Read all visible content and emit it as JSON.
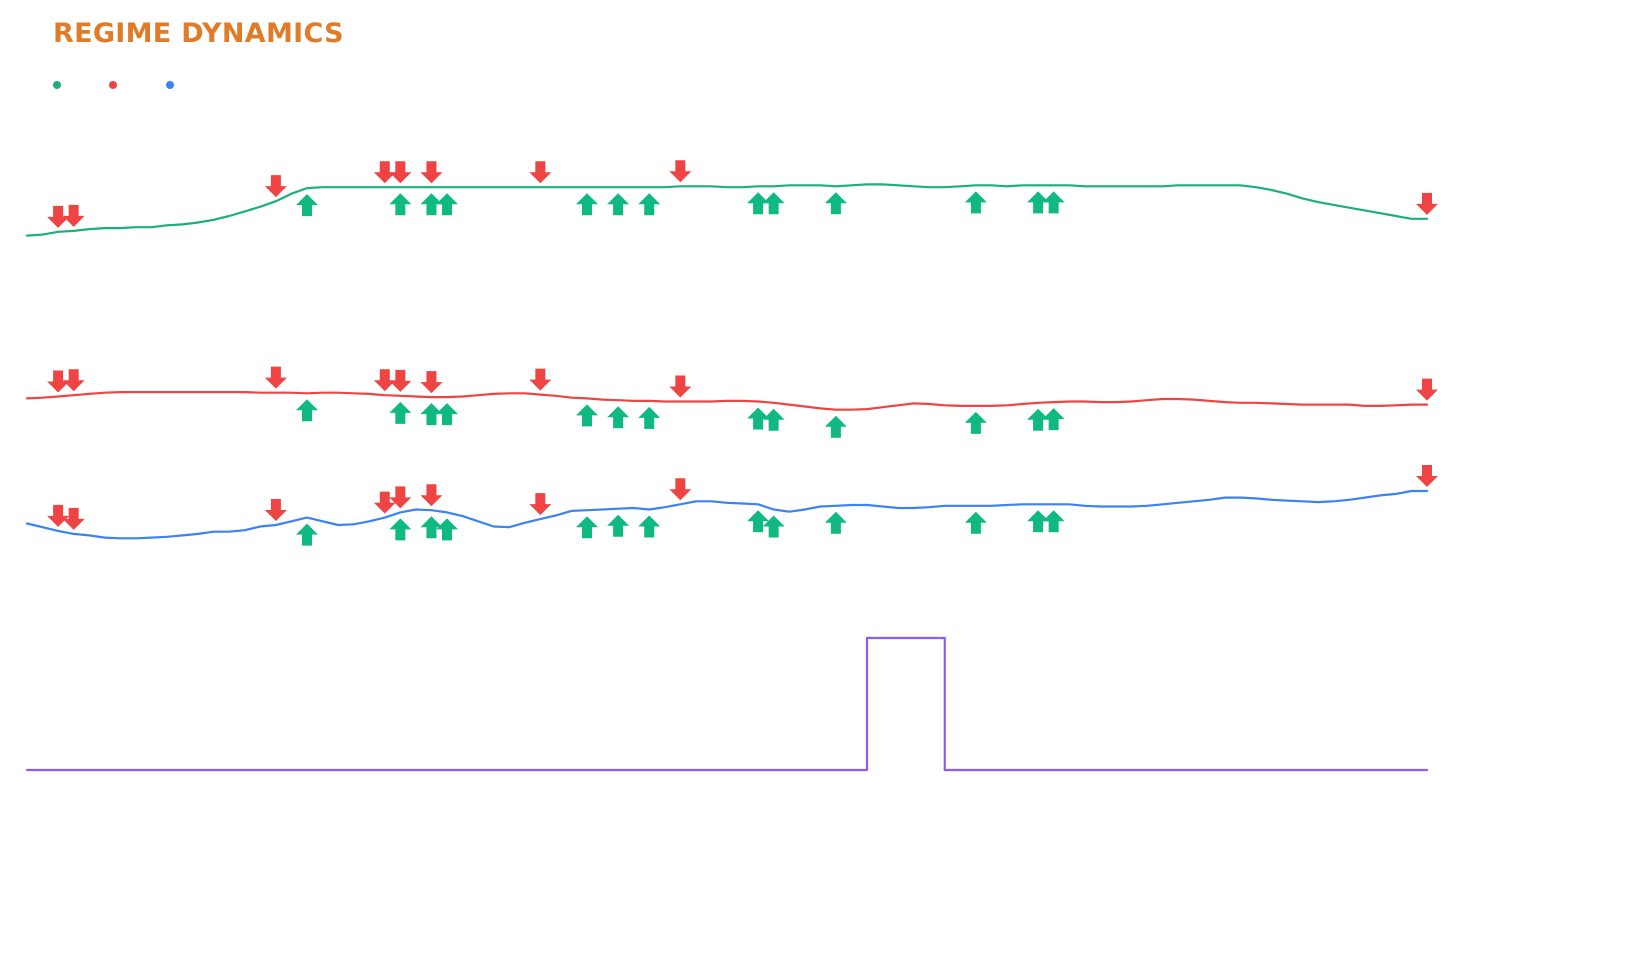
{
  "colors": {
    "title": "#e07b2a",
    "series_green": "#1bb07a",
    "series_red": "#ef4444",
    "series_blue": "#3b82f6",
    "series_purple": "#8b5cf6",
    "marker_up": "#10b981",
    "marker_down": "#ef4444"
  },
  "icons": {
    "up_marker": "arrow-up-icon",
    "down_marker": "arrow-down-icon"
  },
  "chart_data": {
    "type": "line",
    "title": "REGIME DYNAMICS",
    "xlabel": "",
    "ylabel": "",
    "grid": false,
    "legend": "top-left",
    "x": [
      0,
      1,
      2,
      3,
      4,
      5,
      6,
      7,
      8,
      9,
      10,
      11,
      12,
      13,
      14,
      15,
      16,
      17,
      18,
      19,
      20,
      21,
      22,
      23,
      24,
      25,
      26,
      27,
      28,
      29,
      30,
      31,
      32,
      33,
      34,
      35,
      36,
      37,
      38,
      39,
      40,
      41,
      42,
      43,
      44,
      45,
      46,
      47,
      48,
      49,
      50,
      51,
      52,
      53,
      54,
      55,
      56,
      57,
      58,
      59,
      60,
      61,
      62,
      63,
      64,
      65,
      66,
      67,
      68,
      69,
      70,
      71,
      72,
      73,
      74,
      75,
      76,
      77,
      78,
      79,
      80,
      81,
      82,
      83,
      84,
      85,
      86,
      87,
      88,
      89
    ],
    "series": [
      {
        "color": "#1bb07a",
        "ylim": [
          0,
          1
        ],
        "values": [
          0.08,
          0.09,
          0.12,
          0.13,
          0.15,
          0.16,
          0.16,
          0.17,
          0.17,
          0.19,
          0.2,
          0.22,
          0.25,
          0.29,
          0.34,
          0.39,
          0.45,
          0.53,
          0.59,
          0.6,
          0.6,
          0.6,
          0.6,
          0.6,
          0.6,
          0.6,
          0.6,
          0.6,
          0.6,
          0.6,
          0.6,
          0.6,
          0.6,
          0.6,
          0.6,
          0.6,
          0.6,
          0.6,
          0.6,
          0.6,
          0.6,
          0.6,
          0.61,
          0.61,
          0.61,
          0.6,
          0.6,
          0.61,
          0.61,
          0.62,
          0.62,
          0.62,
          0.61,
          0.62,
          0.63,
          0.63,
          0.62,
          0.61,
          0.6,
          0.6,
          0.61,
          0.62,
          0.62,
          0.61,
          0.62,
          0.62,
          0.62,
          0.62,
          0.61,
          0.61,
          0.61,
          0.61,
          0.61,
          0.61,
          0.62,
          0.62,
          0.62,
          0.62,
          0.62,
          0.6,
          0.57,
          0.53,
          0.48,
          0.44,
          0.41,
          0.38,
          0.35,
          0.32,
          0.29,
          0.26
        ]
      },
      {
        "color": "#ef4444",
        "ylim": [
          0,
          1
        ],
        "values": [
          0.55,
          0.56,
          0.58,
          0.6,
          0.62,
          0.64,
          0.65,
          0.65,
          0.65,
          0.65,
          0.65,
          0.65,
          0.65,
          0.65,
          0.65,
          0.64,
          0.64,
          0.64,
          0.63,
          0.64,
          0.64,
          0.63,
          0.62,
          0.6,
          0.59,
          0.58,
          0.57,
          0.57,
          0.58,
          0.6,
          0.62,
          0.63,
          0.63,
          0.61,
          0.59,
          0.56,
          0.55,
          0.53,
          0.52,
          0.51,
          0.51,
          0.5,
          0.5,
          0.5,
          0.5,
          0.51,
          0.51,
          0.5,
          0.48,
          0.45,
          0.42,
          0.39,
          0.37,
          0.37,
          0.38,
          0.41,
          0.44,
          0.47,
          0.46,
          0.44,
          0.43,
          0.43,
          0.43,
          0.44,
          0.46,
          0.48,
          0.49,
          0.5,
          0.5,
          0.49,
          0.49,
          0.5,
          0.52,
          0.54,
          0.54,
          0.53,
          0.51,
          0.49,
          0.48,
          0.48,
          0.47,
          0.46,
          0.45,
          0.45,
          0.45,
          0.45,
          0.43,
          0.43,
          0.44,
          0.45
        ]
      },
      {
        "color": "#3b82f6",
        "ylim": [
          0,
          1
        ],
        "values": [
          0.52,
          0.47,
          0.42,
          0.38,
          0.36,
          0.33,
          0.32,
          0.32,
          0.33,
          0.34,
          0.36,
          0.38,
          0.41,
          0.41,
          0.43,
          0.48,
          0.5,
          0.55,
          0.6,
          0.55,
          0.5,
          0.51,
          0.55,
          0.6,
          0.67,
          0.71,
          0.7,
          0.67,
          0.62,
          0.55,
          0.48,
          0.47,
          0.53,
          0.58,
          0.63,
          0.69,
          0.7,
          0.71,
          0.72,
          0.73,
          0.71,
          0.74,
          0.78,
          0.82,
          0.82,
          0.8,
          0.79,
          0.78,
          0.71,
          0.68,
          0.71,
          0.75,
          0.76,
          0.77,
          0.77,
          0.75,
          0.73,
          0.73,
          0.74,
          0.76,
          0.76,
          0.76,
          0.76,
          0.77,
          0.78,
          0.78,
          0.78,
          0.78,
          0.76,
          0.75,
          0.75,
          0.75,
          0.76,
          0.78,
          0.8,
          0.82,
          0.84,
          0.87,
          0.87,
          0.86,
          0.84,
          0.83,
          0.82,
          0.81,
          0.82,
          0.84,
          0.87,
          0.9,
          0.92,
          0.96
        ]
      },
      {
        "color": "#8b5cf6",
        "ylim": [
          0,
          1
        ],
        "values": [
          0,
          0,
          0,
          0,
          0,
          0,
          0,
          0,
          0,
          0,
          0,
          0,
          0,
          0,
          0,
          0,
          0,
          0,
          0,
          0,
          0,
          0,
          0,
          0,
          0,
          0,
          0,
          0,
          0,
          0,
          0,
          0,
          0,
          0,
          0,
          0,
          0,
          0,
          0,
          0,
          0,
          0,
          0,
          0,
          0,
          0,
          0,
          0,
          0,
          0,
          0,
          0,
          0,
          0,
          1,
          1,
          1,
          1,
          1,
          0,
          0,
          0,
          0,
          0,
          0,
          0,
          0,
          0,
          0,
          0,
          0,
          0,
          0,
          0,
          0,
          0,
          0,
          0,
          0,
          0,
          0,
          0,
          0,
          0,
          0,
          0,
          0,
          0,
          0,
          0
        ]
      }
    ],
    "signals": {
      "up_x": [
        18,
        24,
        26,
        27,
        36,
        38,
        40,
        47,
        48,
        52,
        61,
        65,
        66
      ],
      "down_x": [
        2,
        3,
        16,
        23,
        24,
        26,
        33,
        42,
        90
      ]
    }
  }
}
